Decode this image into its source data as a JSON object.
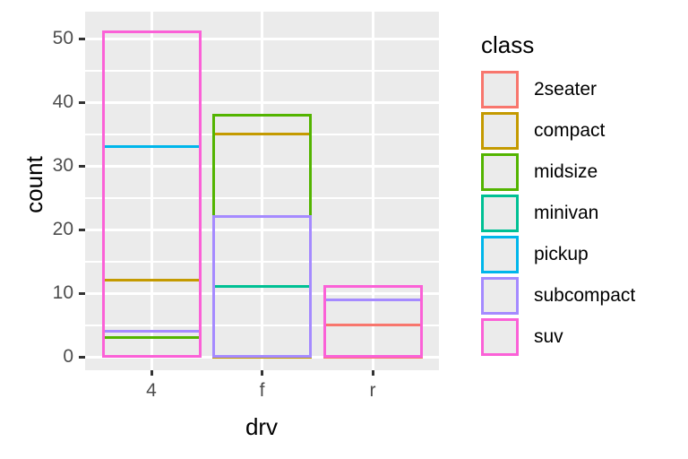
{
  "chart_data": {
    "type": "bar",
    "bar_style": "outlined-rectangles-identity-position",
    "title": "",
    "xlabel": "drv",
    "ylabel": "count",
    "categories": [
      "4",
      "f",
      "r"
    ],
    "series": [
      {
        "name": "2seater",
        "color": "#F8766D",
        "values": [
          null,
          null,
          5
        ]
      },
      {
        "name": "compact",
        "color": "#C49A00",
        "values": [
          12,
          35,
          null
        ]
      },
      {
        "name": "midsize",
        "color": "#53B400",
        "values": [
          3,
          38,
          null
        ]
      },
      {
        "name": "minivan",
        "color": "#00C094",
        "values": [
          null,
          11,
          null
        ]
      },
      {
        "name": "pickup",
        "color": "#00B6EB",
        "values": [
          33,
          null,
          null
        ]
      },
      {
        "name": "subcompact",
        "color": "#A58AFF",
        "values": [
          4,
          22,
          9
        ]
      },
      {
        "name": "suv",
        "color": "#FB61D7",
        "values": [
          51,
          null,
          11
        ]
      }
    ],
    "y_ticks": [
      0,
      10,
      20,
      30,
      40,
      50
    ],
    "y_minor_ticks": [
      5,
      15,
      25,
      35,
      45
    ],
    "ylim": [
      -2.55,
      53.55
    ],
    "grid": true,
    "legend": {
      "title": "class",
      "position": "right"
    },
    "theme": {
      "panel_bg": "#EBEBEB",
      "grid_color": "#FFFFFF",
      "tick_color": "#333333",
      "tick_label_color": "#4D4D4D",
      "title_color": "#000000",
      "legend_key_bg": "#EBEBEB"
    }
  }
}
